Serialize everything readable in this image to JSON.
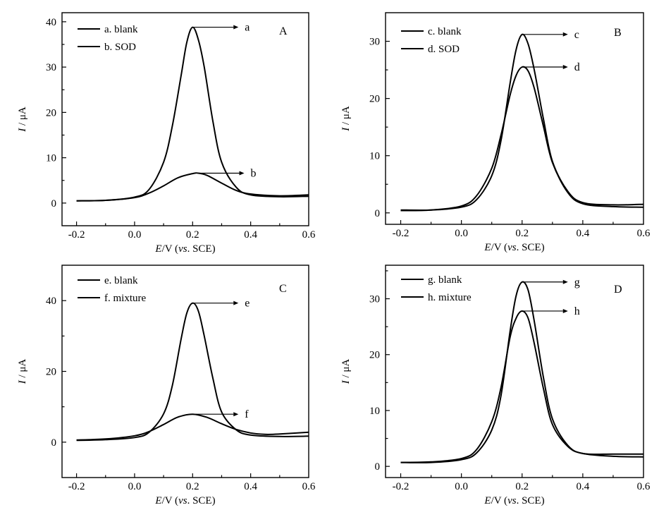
{
  "chart_data": [
    {
      "panel": "A",
      "type": "line",
      "xlabel": {
        "E": "E",
        "unit": "/V (",
        "vs": "vs",
        "ref": ". SCE)"
      },
      "ylabel": {
        "I": "I",
        "unit": " / μA"
      },
      "xlim": [
        -0.25,
        0.6
      ],
      "ylim": [
        -5,
        42
      ],
      "xticks": [
        "-0.2",
        "0.0",
        "0.2",
        "0.4",
        "0.6"
      ],
      "yticks": [
        "0",
        "10",
        "20",
        "30",
        "40"
      ],
      "series": [
        {
          "name": "a. blank",
          "arrow_label": "a",
          "x": [
            -0.2,
            -0.1,
            0.0,
            0.05,
            0.1,
            0.13,
            0.16,
            0.18,
            0.2,
            0.22,
            0.24,
            0.27,
            0.3,
            0.35,
            0.4,
            0.5,
            0.6
          ],
          "y": [
            0.5,
            0.6,
            1.3,
            3.0,
            9.0,
            17.0,
            28.0,
            35.5,
            38.8,
            36.0,
            30.0,
            18.0,
            9.0,
            3.5,
            1.8,
            1.4,
            1.5
          ]
        },
        {
          "name": "b. SOD",
          "arrow_label": "b",
          "x": [
            -0.2,
            -0.1,
            0.0,
            0.05,
            0.1,
            0.15,
            0.2,
            0.22,
            0.25,
            0.3,
            0.35,
            0.4,
            0.5,
            0.6
          ],
          "y": [
            0.5,
            0.6,
            1.2,
            2.2,
            3.8,
            5.6,
            6.5,
            6.6,
            6.1,
            4.4,
            2.8,
            2.0,
            1.6,
            1.8
          ]
        }
      ]
    },
    {
      "panel": "B",
      "type": "line",
      "xlabel": {
        "E": "E",
        "unit": "/V (",
        "vs": "vs",
        "ref": ". SCE)"
      },
      "ylabel": {
        "I": "I",
        "unit": " / μA"
      },
      "xlim": [
        -0.25,
        0.6
      ],
      "ylim": [
        -2,
        35
      ],
      "xticks": [
        "-0.2",
        "0.0",
        "0.2",
        "0.4",
        "0.6"
      ],
      "yticks": [
        "0",
        "10",
        "20",
        "30"
      ],
      "series": [
        {
          "name": "c. blank",
          "arrow_label": "c",
          "x": [
            -0.2,
            -0.1,
            0.0,
            0.05,
            0.1,
            0.13,
            0.16,
            0.18,
            0.2,
            0.22,
            0.24,
            0.27,
            0.3,
            0.35,
            0.4,
            0.5,
            0.6
          ],
          "y": [
            0.5,
            0.5,
            1.0,
            2.3,
            6.5,
            12.5,
            22.5,
            28.5,
            31.2,
            29.5,
            25.0,
            16.5,
            9.0,
            3.8,
            1.8,
            1.4,
            1.5
          ]
        },
        {
          "name": "d. SOD",
          "arrow_label": "d",
          "x": [
            -0.2,
            -0.1,
            0.0,
            0.05,
            0.1,
            0.13,
            0.16,
            0.18,
            0.2,
            0.22,
            0.24,
            0.27,
            0.3,
            0.35,
            0.4,
            0.5,
            0.6
          ],
          "y": [
            0.4,
            0.5,
            1.2,
            3.0,
            7.8,
            13.5,
            20.5,
            24.0,
            25.5,
            24.8,
            21.8,
            15.2,
            8.8,
            3.6,
            1.6,
            1.1,
            1.0
          ]
        }
      ]
    },
    {
      "panel": "C",
      "type": "line",
      "xlabel": {
        "E": "E",
        "unit": "/V (",
        "vs": "vs",
        "ref": ". SCE)"
      },
      "ylabel": {
        "I": "I",
        "unit": " / μA"
      },
      "xlim": [
        -0.25,
        0.6
      ],
      "ylim": [
        -10,
        50
      ],
      "xticks": [
        "-0.2",
        "0.0",
        "0.2",
        "0.4",
        "0.6"
      ],
      "yticks": [
        "0",
        "20",
        "40"
      ],
      "series": [
        {
          "name": "e. blank",
          "arrow_label": "e",
          "x": [
            -0.2,
            -0.1,
            0.0,
            0.05,
            0.1,
            0.13,
            0.16,
            0.18,
            0.2,
            0.22,
            0.24,
            0.27,
            0.3,
            0.35,
            0.4,
            0.5,
            0.6
          ],
          "y": [
            0.5,
            0.7,
            1.3,
            2.8,
            8.0,
            16.0,
            29.0,
            36.5,
            39.3,
            37.0,
            30.0,
            18.0,
            8.5,
            3.5,
            2.0,
            1.6,
            1.7
          ]
        },
        {
          "name": "f. mixture",
          "arrow_label": "f",
          "x": [
            -0.2,
            -0.1,
            0.0,
            0.05,
            0.1,
            0.15,
            0.2,
            0.25,
            0.3,
            0.35,
            0.4,
            0.45,
            0.5,
            0.6
          ],
          "y": [
            0.6,
            0.9,
            1.8,
            3.0,
            5.0,
            7.1,
            7.9,
            7.0,
            5.2,
            3.6,
            2.6,
            2.2,
            2.3,
            2.8
          ]
        }
      ]
    },
    {
      "panel": "D",
      "type": "line",
      "xlabel": {
        "E": "E",
        "unit": "/V (",
        "vs": "vs",
        "ref": ". SCE)"
      },
      "ylabel": {
        "I": "I",
        "unit": " / μA"
      },
      "xlim": [
        -0.25,
        0.6
      ],
      "ylim": [
        -2,
        36
      ],
      "xticks": [
        "-0.2",
        "0.0",
        "0.2",
        "0.4",
        "0.6"
      ],
      "yticks": [
        "0",
        "10",
        "20",
        "30"
      ],
      "series": [
        {
          "name": "g. blank",
          "arrow_label": "g",
          "x": [
            -0.2,
            -0.1,
            0.0,
            0.05,
            0.1,
            0.13,
            0.16,
            0.18,
            0.2,
            0.22,
            0.24,
            0.27,
            0.3,
            0.35,
            0.4,
            0.5,
            0.6
          ],
          "y": [
            0.7,
            0.7,
            1.2,
            2.4,
            6.5,
            12.5,
            24.0,
            30.5,
            33.0,
            31.5,
            26.0,
            16.0,
            8.5,
            3.8,
            2.3,
            2.2,
            2.2
          ]
        },
        {
          "name": "h. mixture",
          "arrow_label": "h",
          "x": [
            -0.2,
            -0.1,
            0.0,
            0.05,
            0.1,
            0.13,
            0.16,
            0.18,
            0.2,
            0.22,
            0.24,
            0.27,
            0.3,
            0.35,
            0.4,
            0.5,
            0.6
          ],
          "y": [
            0.7,
            0.8,
            1.4,
            3.0,
            8.0,
            14.0,
            23.0,
            26.5,
            27.8,
            26.5,
            22.0,
            14.0,
            7.5,
            3.6,
            2.3,
            1.8,
            1.7
          ]
        }
      ]
    }
  ]
}
